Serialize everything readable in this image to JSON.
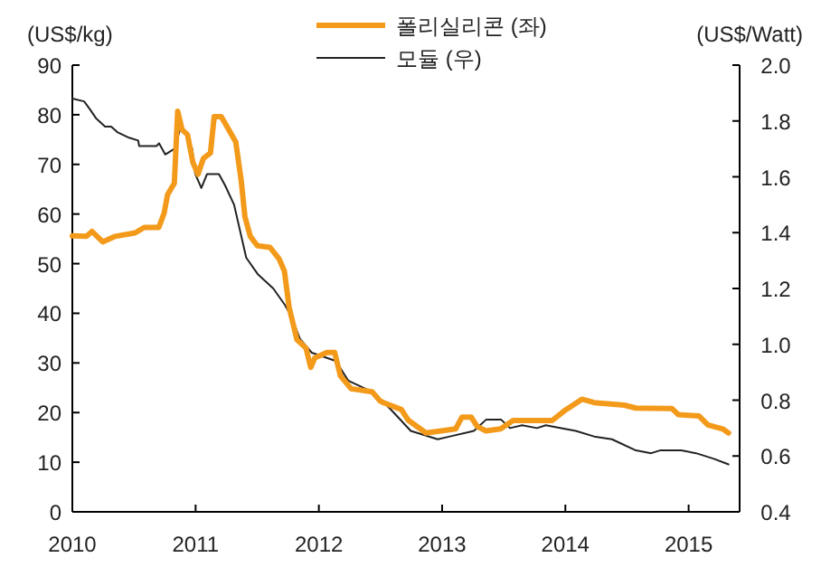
{
  "chart_data": {
    "type": "line",
    "ylabel": "(US$/kg)",
    "y2label": "(US$/Watt)",
    "xlim": [
      "2010-01-01",
      "2015-06-01"
    ],
    "xticks": [
      "2010",
      "2011",
      "2012",
      "2013",
      "2014",
      "2015"
    ],
    "ylim": [
      0,
      90
    ],
    "yticks": [
      0,
      10,
      20,
      30,
      40,
      50,
      60,
      70,
      80,
      90
    ],
    "y2lim": [
      0.4,
      2.0
    ],
    "y2ticks": [
      {
        "value": 0.4,
        "label": "0.4"
      },
      {
        "value": 0.6,
        "label": "0.6"
      },
      {
        "value": 0.8,
        "label": "0.8"
      },
      {
        "value": 1.0,
        "label": "1.0"
      },
      {
        "value": 1.2,
        "label": "1.2"
      },
      {
        "value": 1.4,
        "label": "1.4"
      },
      {
        "value": 1.6,
        "label": "1.6"
      },
      {
        "value": 1.8,
        "label": "1.8"
      },
      {
        "value": 2.0,
        "label": "2.0"
      }
    ],
    "grid": false,
    "legend": "top",
    "line_style": "solid",
    "series": [
      {
        "name": "폴리실리콘 (좌)",
        "color": "#f39a1b",
        "x": [
          "2010-01-01",
          "2010-02-12",
          "2010-02-28",
          "2010-04-01",
          "2010-05-08",
          "2010-07-06",
          "2010-08-02",
          "2010-09-14",
          "2010-09-30",
          "2010-10-10",
          "2010-10-30",
          "2010-11-09",
          "2010-11-22",
          "2010-12-08",
          "2010-12-24",
          "2011-01-08",
          "2011-01-24",
          "2011-02-14",
          "2011-02-25",
          "2011-03-18",
          "2011-04-09",
          "2011-04-30",
          "2011-05-16",
          "2011-05-27",
          "2011-06-12",
          "2011-07-03",
          "2011-08-09",
          "2011-09-05",
          "2011-09-21",
          "2011-10-05",
          "2011-10-28",
          "2011-11-24",
          "2011-12-08",
          "2011-12-20",
          "2012-01-25",
          "2012-02-17",
          "2012-03-05",
          "2012-04-06",
          "2012-06-07",
          "2012-06-30",
          "2012-07-11",
          "2012-09-02",
          "2012-09-22",
          "2012-11-14",
          "2012-12-29",
          "2013-02-10",
          "2013-03-01",
          "2013-03-28",
          "2013-04-15",
          "2013-05-11",
          "2013-06-23",
          "2013-07-30",
          "2013-10-01",
          "2013-11-23",
          "2013-12-28",
          "2014-02-19",
          "2014-03-27",
          "2014-06-24",
          "2014-07-29",
          "2014-11-13",
          "2014-12-01",
          "2015-02-01",
          "2015-02-27",
          "2015-04-12",
          "2015-04-29"
        ],
        "values": [
          55.6,
          55.5,
          56.5,
          54.4,
          55.5,
          56.2,
          57.3,
          57.3,
          60.2,
          63.9,
          66.2,
          80.7,
          77,
          76,
          70.4,
          68,
          71.2,
          72.3,
          79.6,
          79.6,
          77,
          74.5,
          66.8,
          59.5,
          55.5,
          53.6,
          53.3,
          51,
          48.5,
          41.2,
          34.7,
          33,
          29.1,
          31,
          32.1,
          32.1,
          27.4,
          24.8,
          24.2,
          22.4,
          22,
          20.6,
          18.5,
          15.9,
          16.3,
          16.7,
          19.1,
          19.1,
          17.2,
          16.3,
          16.7,
          18.4,
          18.4,
          18.4,
          20.3,
          22.7,
          22,
          21.5,
          20.9,
          20.8,
          19.6,
          19.3,
          17.5,
          16.7,
          15.9
        ]
      },
      {
        "name": "모듈 (우)",
        "color": "#222222",
        "axis": "y2",
        "x": [
          "2010-01-01",
          "2010-02-05",
          "2010-02-23",
          "2010-03-12",
          "2010-04-08",
          "2010-04-26",
          "2010-05-14",
          "2010-06-18",
          "2010-07-15",
          "2010-07-18",
          "2010-09-07",
          "2010-09-15",
          "2010-10-03",
          "2010-10-30",
          "2010-11-16",
          "2010-12-04",
          "2010-12-22",
          "2010-12-31",
          "2011-01-18",
          "2011-02-04",
          "2011-03-11",
          "2011-03-29",
          "2011-04-25",
          "2011-05-31",
          "2011-07-05",
          "2011-08-19",
          "2011-09-23",
          "2011-10-11",
          "2011-11-06",
          "2011-12-11",
          "2012-02-21",
          "2012-03-28",
          "2012-05-20",
          "2012-06-25",
          "2012-07-30",
          "2012-09-30",
          "2012-12-19",
          "2013-01-24",
          "2013-04-05",
          "2013-05-11",
          "2013-06-25",
          "2013-07-21",
          "2013-08-26",
          "2013-10-09",
          "2013-11-04",
          "2014-02-01",
          "2014-03-27",
          "2014-05-19",
          "2014-07-29",
          "2014-09-12",
          "2014-10-08",
          "2014-12-10",
          "2015-01-23",
          "2015-03-17",
          "2015-04-29"
        ],
        "values": [
          1.88,
          1.87,
          1.84,
          1.81,
          1.78,
          1.78,
          1.76,
          1.74,
          1.73,
          1.71,
          1.71,
          1.72,
          1.68,
          1.7,
          1.77,
          1.75,
          1.7,
          1.61,
          1.56,
          1.61,
          1.61,
          1.57,
          1.5,
          1.31,
          1.25,
          1.2,
          1.14,
          1.1,
          1.02,
          0.97,
          0.94,
          0.87,
          0.84,
          0.81,
          0.77,
          0.69,
          0.66,
          0.67,
          0.69,
          0.73,
          0.73,
          0.7,
          0.71,
          0.7,
          0.71,
          0.69,
          0.67,
          0.66,
          0.62,
          0.61,
          0.62,
          0.62,
          0.61,
          0.59,
          0.57
        ]
      }
    ]
  }
}
